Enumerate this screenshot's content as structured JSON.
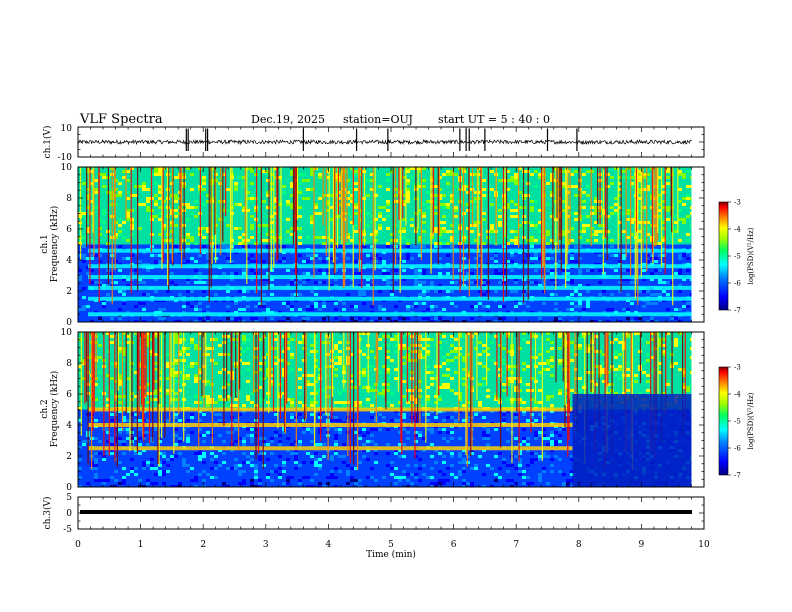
{
  "header": {
    "title": "VLF Spectra",
    "date": "Dec.19, 2025",
    "station": "station=OUJ",
    "start_ut": "start UT =  5 : 40 : 0"
  },
  "chart_data": [
    {
      "type": "line",
      "name": "channel-1-waveform",
      "ylabel": "ch.1(V)",
      "ylim": [
        -10,
        10
      ],
      "yticks": [
        "10",
        "-10"
      ],
      "xlim": [
        0,
        10
      ],
      "x": [
        0,
        9.8
      ],
      "baseline": 0,
      "spikes_min": [
        1.73,
        1.76,
        2.04,
        2.07,
        3.6,
        4.45,
        4.95,
        6.1,
        6.2,
        6.25,
        6.5,
        7.5,
        7.97
      ],
      "units": "V"
    },
    {
      "type": "heatmap",
      "name": "channel-1-spectrogram",
      "ylabel": "ch.1 Frequency (kHz)",
      "ylim": [
        0,
        10
      ],
      "yticks": [
        "0",
        "2",
        "4",
        "6",
        "8",
        "10"
      ],
      "xlim": [
        0,
        10
      ],
      "data_end_min": 9.8,
      "colorbar": {
        "label": "log(PSD)(V²/Hz)",
        "range": [
          -7,
          -3
        ],
        "ticks": [
          "-3",
          "-4",
          "-5",
          "-6",
          "-7"
        ]
      },
      "bands_khz": [
        0.5,
        1.5,
        2.2,
        2.9,
        3.6,
        4.6
      ]
    },
    {
      "type": "heatmap",
      "name": "channel-2-spectrogram",
      "ylabel": "ch.2 Frequency (kHz)",
      "ylim": [
        0,
        10
      ],
      "yticks": [
        "0",
        "2",
        "4",
        "6",
        "8",
        "10"
      ],
      "xlim": [
        0,
        10
      ],
      "data_end_min": 9.8,
      "colorbar": {
        "label": "log(PSD)(V²/Hz)",
        "range": [
          -7,
          -3
        ],
        "ticks": [
          "-3",
          "-4",
          "-5",
          "-6",
          "-7"
        ]
      },
      "bands_khz": [
        2.5,
        4.0,
        5.0
      ],
      "band_change_min": 7.9
    },
    {
      "type": "line",
      "name": "channel-3-waveform",
      "ylabel": "ch.3(V)",
      "ylim": [
        -5,
        5
      ],
      "yticks": [
        "5",
        "0",
        "-5"
      ],
      "xlim": [
        0,
        10
      ],
      "x": [
        0,
        9.8
      ],
      "constant_value": -1
    }
  ],
  "xaxis": {
    "label": "Time (min)",
    "ticks": [
      "0",
      "1",
      "2",
      "3",
      "4",
      "5",
      "6",
      "7",
      "8",
      "9",
      "10"
    ]
  },
  "colors": {
    "axis": "#000000",
    "trace": "#000000",
    "colormap": [
      "#000080",
      "#0000ff",
      "#0080ff",
      "#00ffff",
      "#00ff80",
      "#80ff00",
      "#ffff00",
      "#ff8000",
      "#ff0000",
      "#800000"
    ]
  }
}
